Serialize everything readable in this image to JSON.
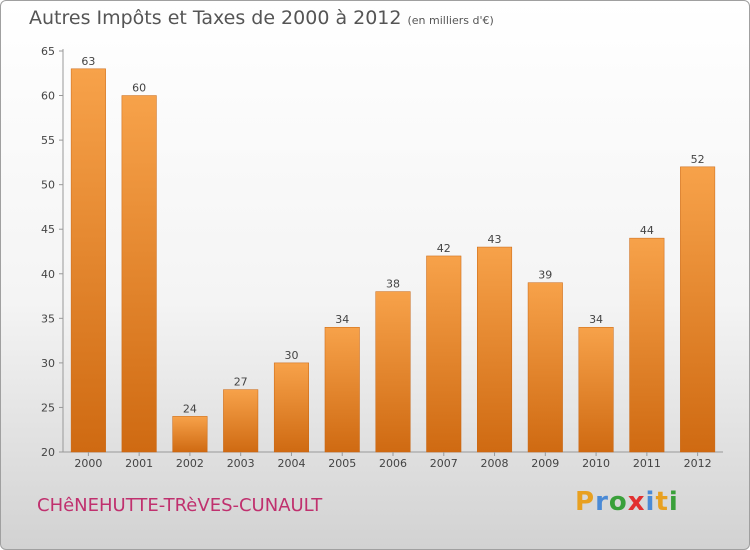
{
  "chart_data": {
    "type": "bar",
    "title": "Autres Impôts et Taxes de 2000 à 2012",
    "subtitle": "(en milliers d'€)",
    "categories": [
      "2000",
      "2001",
      "2002",
      "2003",
      "2004",
      "2005",
      "2006",
      "2007",
      "2008",
      "2009",
      "2010",
      "2011",
      "2012"
    ],
    "values": [
      63,
      60,
      24,
      27,
      30,
      34,
      38,
      42,
      43,
      39,
      34,
      44,
      52
    ],
    "data_labels": [
      "63",
      "60",
      "24",
      "27",
      "30",
      "34",
      "38",
      "42",
      "43",
      "39",
      "34",
      "44",
      "52"
    ],
    "ylim": [
      20,
      65
    ],
    "yticks": [
      20,
      25,
      30,
      35,
      40,
      45,
      50,
      55,
      60,
      65
    ],
    "grid": false,
    "legend": "none",
    "bar_color": "#f39c3c"
  },
  "footer": {
    "commune": "CHêNEHUTTE-TRèVES-CUNAULT",
    "logo_letters": [
      "P",
      "r",
      "o",
      "x",
      "i",
      "t",
      "i"
    ],
    "logo_colors": [
      "#e8a020",
      "#4a8ad6",
      "#3aa03a",
      "#e23030",
      "#4a8ad6",
      "#e8a020",
      "#3aa03a"
    ]
  }
}
